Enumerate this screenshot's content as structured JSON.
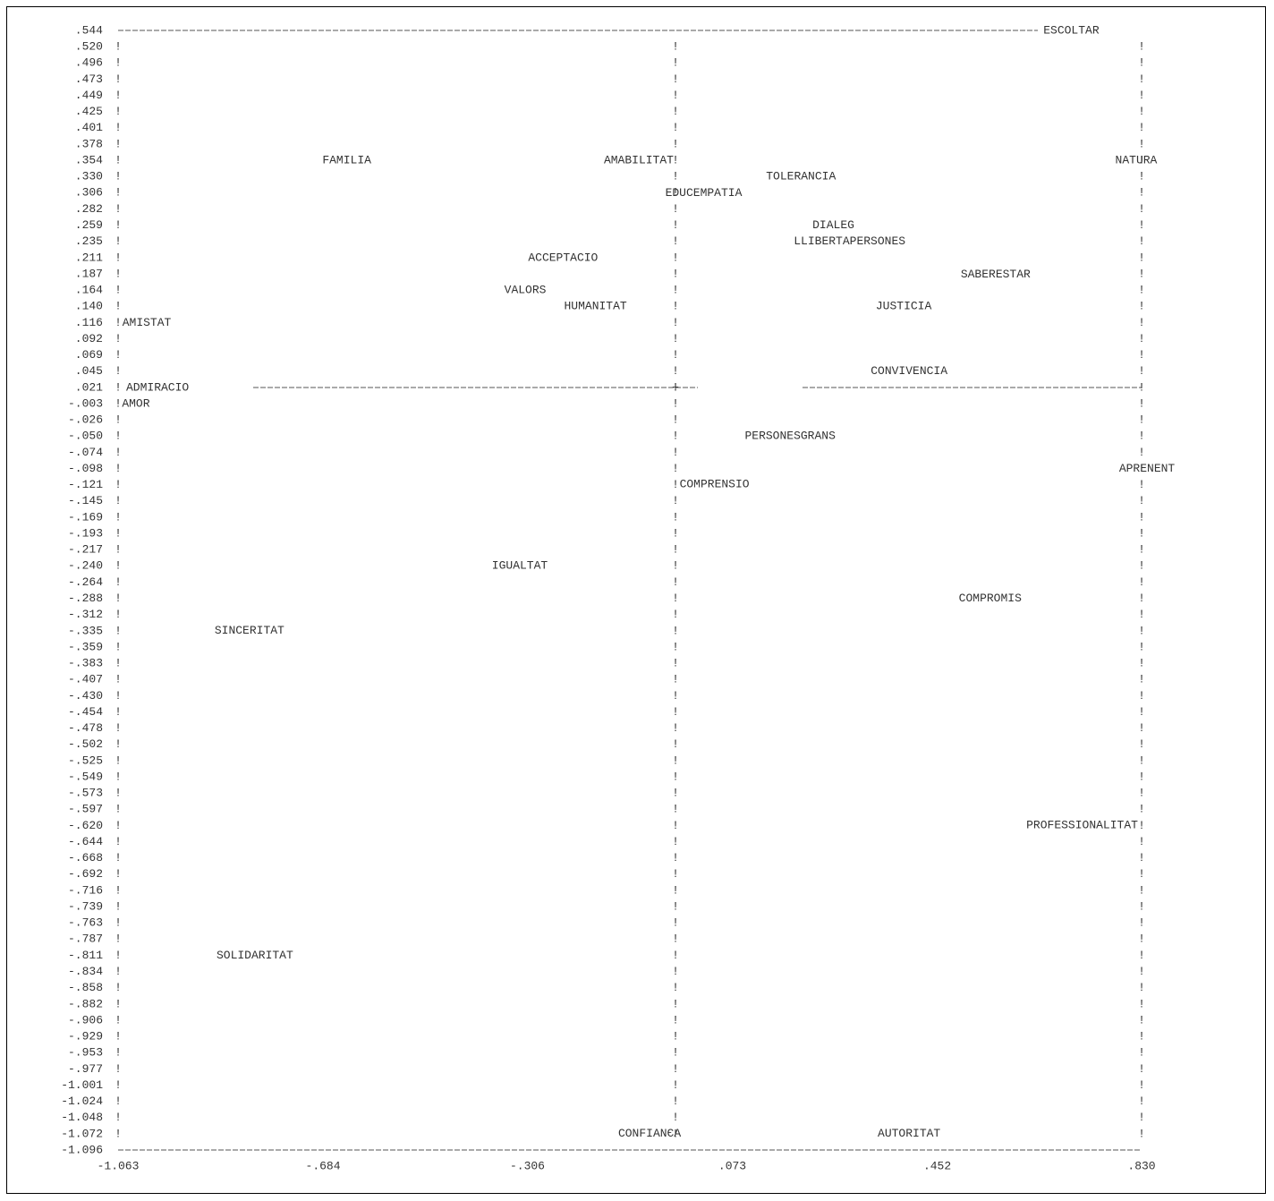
{
  "chart_data": {
    "type": "scatter",
    "title": "",
    "xlabel": "",
    "ylabel": "",
    "xlim": [
      -1.063,
      0.83
    ],
    "ylim": [
      -1.096,
      0.544
    ],
    "x_ticks": [
      "-1.063",
      "-.684",
      "-.306",
      ".073",
      ".452",
      ".830"
    ],
    "y_ticks": [
      ".544",
      ".520",
      ".496",
      ".473",
      ".449",
      ".425",
      ".401",
      ".378",
      ".354",
      ".330",
      ".306",
      ".282",
      ".259",
      ".235",
      ".211",
      ".187",
      ".164",
      ".140",
      ".116",
      ".092",
      ".069",
      ".045",
      ".021",
      "-.003",
      "-.026",
      "-.050",
      "-.074",
      "-.098",
      "-.121",
      "-.145",
      "-.169",
      "-.193",
      "-.217",
      "-.240",
      "-.264",
      "-.288",
      "-.312",
      "-.335",
      "-.359",
      "-.383",
      "-.407",
      "-.430",
      "-.454",
      "-.478",
      "-.502",
      "-.525",
      "-.549",
      "-.573",
      "-.597",
      "-.620",
      "-.644",
      "-.668",
      "-.692",
      "-.716",
      "-.739",
      "-.763",
      "-.787",
      "-.811",
      "-.834",
      "-.858",
      "-.882",
      "-.906",
      "-.929",
      "-.953",
      "-.977",
      "-1.001",
      "-1.024",
      "-1.048",
      "-1.072",
      "-1.096"
    ],
    "axis_border_char": "!",
    "points": [
      {
        "label": "ESCOLTAR",
        "x": 0.7,
        "y": 0.544
      },
      {
        "label": "FAMILIA",
        "x": -0.64,
        "y": 0.354
      },
      {
        "label": "AMABILITAT",
        "x": -0.1,
        "y": 0.354
      },
      {
        "label": "NATURA",
        "x": 0.82,
        "y": 0.354
      },
      {
        "label": "TOLERANCIA",
        "x": 0.2,
        "y": 0.33
      },
      {
        "label": "EDUCEMPATIA",
        "x": 0.02,
        "y": 0.306
      },
      {
        "label": "DIALEG",
        "x": 0.26,
        "y": 0.259
      },
      {
        "label": "LLIBERTAPERSONES",
        "x": 0.29,
        "y": 0.235
      },
      {
        "label": "ACCEPTACIO",
        "x": -0.24,
        "y": 0.211
      },
      {
        "label": "SABERESTAR",
        "x": 0.56,
        "y": 0.187
      },
      {
        "label": "VALORS",
        "x": -0.31,
        "y": 0.164
      },
      {
        "label": "HUMANITAT",
        "x": -0.18,
        "y": 0.14
      },
      {
        "label": "JUSTICIA",
        "x": 0.39,
        "y": 0.14
      },
      {
        "label": "AMISTAT",
        "x": -1.01,
        "y": 0.116
      },
      {
        "label": "CONVIVENCIA",
        "x": 0.4,
        "y": 0.045
      },
      {
        "label": "ADMIRACIO",
        "x": -0.99,
        "y": 0.021
      },
      {
        "label": "AMOR",
        "x": -1.03,
        "y": -0.003
      },
      {
        "label": "PERSONESGRANS",
        "x": 0.18,
        "y": -0.05
      },
      {
        "label": "APRENENT",
        "x": 0.84,
        "y": -0.098
      },
      {
        "label": "COMPRENSIO",
        "x": 0.04,
        "y": -0.121
      },
      {
        "label": "IGUALTAT",
        "x": -0.32,
        "y": -0.24
      },
      {
        "label": "COMPROMIS",
        "x": 0.55,
        "y": -0.288
      },
      {
        "label": "SINCERITAT",
        "x": -0.82,
        "y": -0.335
      },
      {
        "label": "PROFESSIONALITAT",
        "x": 0.72,
        "y": -0.62
      },
      {
        "label": "SOLIDARITAT",
        "x": -0.81,
        "y": -0.811
      },
      {
        "label": "CONFIANЄA",
        "x": -0.08,
        "y": -1.072
      },
      {
        "label": "AUTORITAT",
        "x": 0.4,
        "y": -1.072
      }
    ]
  }
}
